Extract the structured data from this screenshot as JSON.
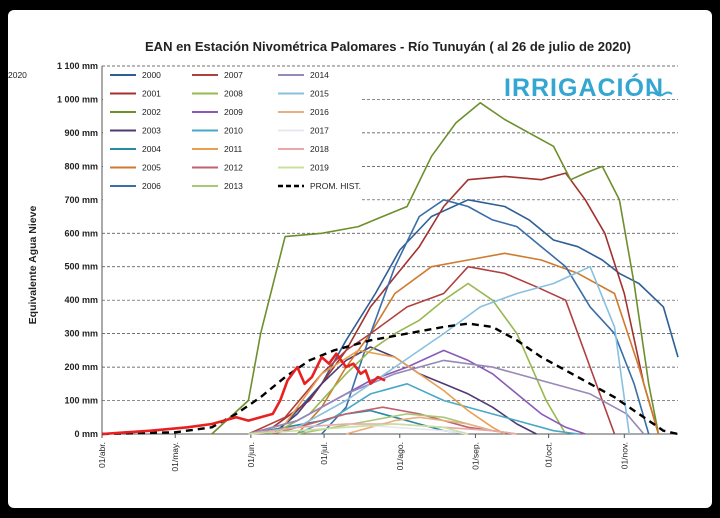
{
  "chart_data": {
    "type": "line",
    "title": "EAN en Estación Nivométrica Palomares - Río Tunuyán  ( al 26 de julio de 2020)",
    "ylabel": "Equivalente Agua Nieve",
    "ylim": [
      0,
      1100
    ],
    "yticks": [
      "0 mm",
      "100 mm",
      "200 mm",
      "300 mm",
      "400 mm",
      "500 mm",
      "600 mm",
      "700 mm",
      "800 mm",
      "900 mm",
      "1 000 mm",
      "1 100 mm"
    ],
    "xticks": [
      "01/abr.",
      "01/may.",
      "01/jun.",
      "01/jul.",
      "01/ago.",
      "01/sep.",
      "01/oct.",
      "01/nov."
    ],
    "xticks_day": [
      0,
      30,
      61,
      91,
      122,
      153,
      183,
      214
    ],
    "xlim_days": [
      0,
      236
    ],
    "grid": "horizontal dashed",
    "legend_position": "top-left",
    "logo": "IRRIGACIÓN",
    "series": [
      {
        "name": "2000",
        "color": "#2e5f94",
        "x": [
          60,
          75,
          90,
          100,
          112,
          122,
          135,
          150,
          165,
          175,
          185,
          195,
          205,
          212,
          220,
          230,
          236
        ],
        "y": [
          0,
          30,
          150,
          280,
          420,
          550,
          650,
          700,
          680,
          640,
          580,
          560,
          520,
          480,
          450,
          380,
          230
        ]
      },
      {
        "name": "2001",
        "color": "#a3322f",
        "x": [
          60,
          70,
          85,
          100,
          110,
          120,
          130,
          140,
          150,
          165,
          180,
          190,
          198,
          206,
          214,
          222,
          228
        ],
        "y": [
          0,
          20,
          100,
          250,
          380,
          470,
          560,
          680,
          760,
          770,
          760,
          780,
          700,
          600,
          420,
          150,
          0
        ]
      },
      {
        "name": "2002",
        "color": "#6e8f2e",
        "x": [
          45,
          60,
          65,
          75,
          90,
          105,
          115,
          125,
          135,
          145,
          155,
          165,
          175,
          185,
          192,
          198,
          205,
          212,
          218,
          224,
          228
        ],
        "y": [
          0,
          100,
          300,
          590,
          600,
          620,
          650,
          680,
          830,
          930,
          990,
          940,
          900,
          860,
          760,
          780,
          800,
          700,
          450,
          150,
          0
        ]
      },
      {
        "name": "2003",
        "color": "#4e3a75",
        "x": [
          70,
          80,
          90,
          100,
          110,
          120,
          130,
          140,
          150,
          160,
          170,
          178
        ],
        "y": [
          0,
          60,
          150,
          220,
          260,
          230,
          180,
          150,
          120,
          80,
          30,
          0
        ]
      },
      {
        "name": "2004",
        "color": "#2a8aa0",
        "x": [
          60,
          75,
          90,
          100,
          110,
          120,
          130,
          140,
          150
        ],
        "y": [
          0,
          20,
          40,
          60,
          70,
          50,
          30,
          10,
          0
        ]
      },
      {
        "name": "2005",
        "color": "#d07a30",
        "x": [
          80,
          90,
          100,
          110,
          120,
          135,
          150,
          165,
          180,
          195,
          210,
          220,
          228
        ],
        "y": [
          0,
          80,
          200,
          300,
          420,
          500,
          520,
          540,
          520,
          480,
          420,
          200,
          0
        ]
      },
      {
        "name": "2006",
        "color": "#3a6ea8",
        "x": [
          90,
          100,
          110,
          120,
          130,
          140,
          150,
          160,
          170,
          180,
          190,
          200,
          210,
          218,
          224
        ],
        "y": [
          0,
          80,
          300,
          500,
          650,
          700,
          680,
          640,
          620,
          560,
          500,
          380,
          300,
          150,
          0
        ]
      },
      {
        "name": "2007",
        "color": "#b04040",
        "x": [
          60,
          75,
          90,
          100,
          110,
          125,
          140,
          150,
          165,
          178,
          190,
          200,
          210
        ],
        "y": [
          0,
          50,
          180,
          250,
          300,
          380,
          420,
          500,
          480,
          440,
          400,
          200,
          0
        ]
      },
      {
        "name": "2008",
        "color": "#98b850",
        "x": [
          70,
          85,
          100,
          110,
          120,
          130,
          140,
          150,
          160,
          170,
          182,
          190
        ],
        "y": [
          0,
          60,
          180,
          250,
          300,
          340,
          400,
          450,
          400,
          300,
          100,
          0
        ]
      },
      {
        "name": "2009",
        "color": "#8a5ab8",
        "x": [
          60,
          80,
          95,
          110,
          125,
          140,
          150,
          160,
          170,
          180,
          190,
          198
        ],
        "y": [
          0,
          40,
          100,
          160,
          200,
          250,
          220,
          180,
          120,
          60,
          20,
          0
        ]
      },
      {
        "name": "2010",
        "color": "#48a8c8",
        "x": [
          80,
          95,
          110,
          125,
          140,
          155,
          170,
          185,
          195
        ],
        "y": [
          0,
          50,
          120,
          150,
          100,
          70,
          40,
          10,
          0
        ]
      },
      {
        "name": "2011",
        "color": "#e8a050",
        "x": [
          60,
          75,
          90,
          105,
          120,
          130,
          140,
          150,
          160,
          165
        ],
        "y": [
          0,
          30,
          180,
          250,
          230,
          180,
          130,
          70,
          20,
          0
        ]
      },
      {
        "name": "2012",
        "color": "#c06070",
        "x": [
          70,
          85,
          100,
          115,
          130,
          140,
          150,
          160,
          170
        ],
        "y": [
          0,
          30,
          60,
          80,
          60,
          40,
          20,
          10,
          0
        ]
      },
      {
        "name": "2013",
        "color": "#a8c878",
        "x": [
          80,
          95,
          110,
          125,
          140,
          150,
          160,
          170
        ],
        "y": [
          0,
          20,
          40,
          60,
          50,
          30,
          10,
          0
        ]
      },
      {
        "name": "2014",
        "color": "#9888b8",
        "x": [
          60,
          80,
          100,
          120,
          140,
          160,
          180,
          200,
          215,
          222
        ],
        "y": [
          0,
          40,
          120,
          180,
          220,
          200,
          160,
          120,
          60,
          0
        ]
      },
      {
        "name": "2015",
        "color": "#88c0e0",
        "x": [
          60,
          80,
          100,
          120,
          140,
          155,
          170,
          185,
          200,
          210,
          216
        ],
        "y": [
          0,
          20,
          100,
          200,
          300,
          380,
          420,
          450,
          500,
          320,
          0
        ]
      },
      {
        "name": "2016",
        "color": "#e8b080",
        "x": [
          100,
          110,
          120,
          130,
          140,
          150,
          160,
          170
        ],
        "y": [
          0,
          20,
          40,
          50,
          40,
          30,
          10,
          0
        ]
      },
      {
        "name": "2017",
        "color": "#e8e8ee",
        "x": [
          60,
          80,
          100,
          120,
          140,
          150
        ],
        "y": [
          0,
          20,
          30,
          20,
          10,
          0
        ]
      },
      {
        "name": "2018",
        "color": "#e8a8a8",
        "x": [
          60,
          80,
          100,
          120,
          140,
          160,
          170
        ],
        "y": [
          0,
          20,
          30,
          30,
          20,
          10,
          0
        ]
      },
      {
        "name": "2019",
        "color": "#c8e0a0",
        "x": [
          60,
          80,
          100,
          120,
          140,
          150
        ],
        "y": [
          0,
          10,
          20,
          30,
          20,
          0
        ]
      },
      {
        "name": "PROM. HIST.",
        "color": "#000000",
        "dashed": true,
        "x": [
          0,
          30,
          45,
          55,
          65,
          75,
          85,
          95,
          110,
          125,
          140,
          150,
          160,
          170,
          180,
          190,
          200,
          210,
          220,
          230,
          236
        ],
        "y": [
          0,
          5,
          20,
          60,
          110,
          170,
          220,
          250,
          280,
          300,
          320,
          330,
          320,
          280,
          230,
          190,
          150,
          110,
          60,
          10,
          0
        ]
      },
      {
        "name": "2020",
        "color": "#e82020",
        "bold": true,
        "x": [
          0,
          10,
          20,
          35,
          45,
          50,
          55,
          60,
          65,
          70,
          73,
          76,
          80,
          83,
          86,
          90,
          93,
          96,
          100,
          103,
          106,
          108,
          110,
          113,
          116
        ],
        "y": [
          0,
          5,
          10,
          20,
          30,
          40,
          50,
          40,
          50,
          60,
          100,
          160,
          200,
          150,
          170,
          230,
          210,
          240,
          200,
          210,
          180,
          190,
          150,
          170,
          160
        ]
      }
    ]
  }
}
